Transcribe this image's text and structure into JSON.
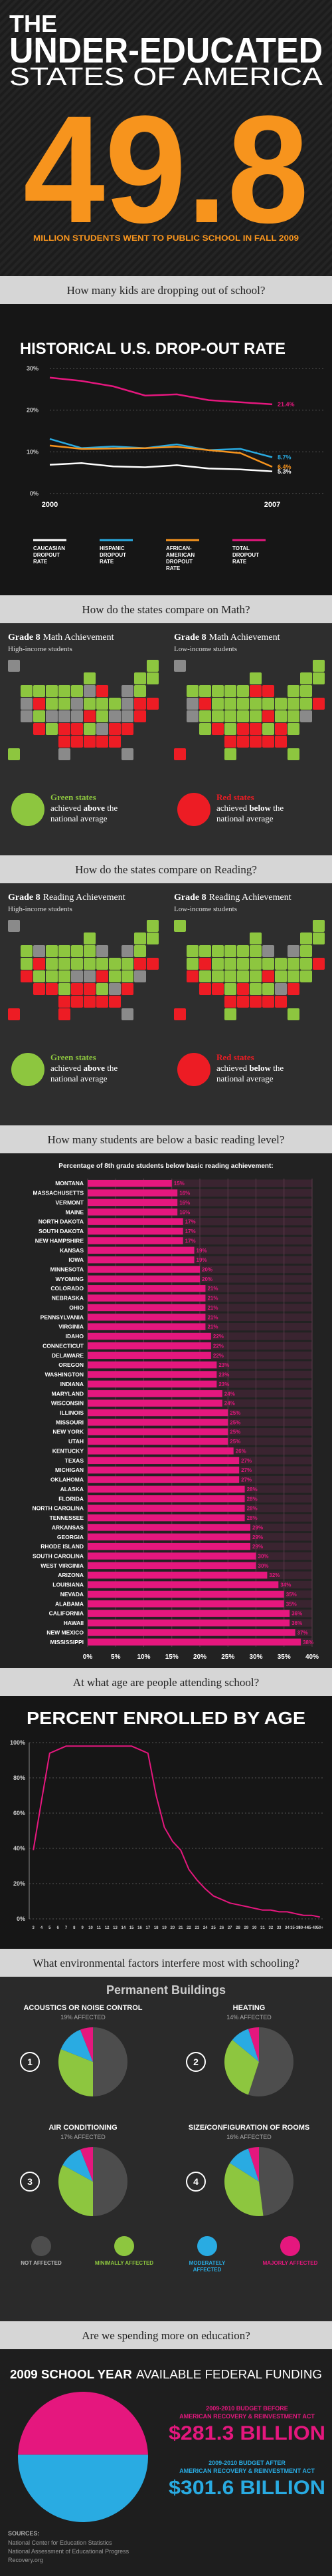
{
  "header": {
    "kicker": "THE",
    "title_1": "UNDER-EDUCATED",
    "title_2": "STATES OF AMERICA",
    "big_number": 49.8,
    "big_caption": "MILLION STUDENTS WENT TO PUBLIC SCHOOL IN FALL 2009"
  },
  "questions": [
    "How many kids are dropping out of school?",
    "How do the states compare on Math?",
    "How do the states compare on Reading?",
    "How many students are below a basic reading level?",
    "At what age are people attending school?",
    "What environmental factors interfere most with schooling?",
    "Are we spending more on education?"
  ],
  "maps": [
    {
      "blocks": [
        {
          "title_a": "Grade 8",
          "title_b": "Math Achievement",
          "subtitle": "High-income students"
        },
        {
          "title_a": "Grade 8",
          "title_b": "Math Achievement",
          "subtitle": "Low-income students"
        }
      ]
    },
    {
      "blocks": [
        {
          "title_a": "Grade 8",
          "title_b": "Reading Achievement",
          "subtitle": "High-income students"
        },
        {
          "title_a": "Grade 8",
          "title_b": "Reading Achievement",
          "subtitle": "Low-income students"
        }
      ]
    }
  ],
  "map_legend": [
    {
      "title": "Green states",
      "pre": "achieved",
      "key": "above",
      "post": "the",
      "line_3": "national average",
      "color": "#8dc63f"
    },
    {
      "title": "Red states",
      "pre": "achieved",
      "key": "below",
      "post": "the",
      "line_3": "national average",
      "color": "#ed1c24"
    }
  ],
  "chart_data": [
    {
      "type": "line",
      "title": "HISTORICAL U.S. DROP-OUT RATE",
      "x": [
        2000,
        2001,
        2002,
        2003,
        2004,
        2005,
        2006,
        2007
      ],
      "xlim": [
        2000,
        2007
      ],
      "xticks": [
        2000,
        2007
      ],
      "ylim": [
        0,
        30
      ],
      "yticks": [
        {
          "value": 0,
          "label": "0%"
        },
        {
          "value": 10,
          "label": "10%"
        },
        {
          "value": 20,
          "label": "20%"
        },
        {
          "value": 30,
          "label": "30%"
        }
      ],
      "grid": true,
      "series": [
        {
          "name": "CAUCASIAN DROPOUT RATE",
          "color": "#ffffff",
          "values": [
            6.9,
            7.3,
            6.5,
            6.3,
            6.8,
            6.0,
            5.8,
            5.3
          ],
          "value_labels": [
            null,
            null,
            null,
            null,
            null,
            null,
            null,
            "5.3%"
          ]
        },
        {
          "name": "HISPANIC DROPOUT RATE",
          "color": "#29abe2",
          "values": [
            13.1,
            10.9,
            11.3,
            10.9,
            11.8,
            10.4,
            10.7,
            8.7
          ],
          "value_labels": [
            null,
            null,
            null,
            null,
            null,
            null,
            null,
            "8.7%"
          ]
        },
        {
          "name": "AFRICAN-AMERICAN DROPOUT RATE",
          "color": "#f7941d",
          "values": [
            11.5,
            10.7,
            10.8,
            10.9,
            11.2,
            10.4,
            9.7,
            6.4
          ],
          "value_labels": [
            null,
            null,
            null,
            null,
            null,
            null,
            null,
            "6.4%"
          ]
        },
        {
          "name": "TOTAL DROPOUT RATE",
          "color": "#e5177e",
          "values": [
            27.8,
            27.0,
            25.7,
            23.5,
            23.8,
            22.4,
            21.9,
            21.4
          ],
          "value_labels": [
            null,
            null,
            null,
            null,
            null,
            null,
            null,
            "21.4%"
          ]
        }
      ]
    },
    {
      "type": "bar",
      "subtitle": "Percentage of 8th grade students below basic reading achievement:",
      "categories": [
        "MONTANA",
        "MASSACHUSETTS",
        "VERMONT",
        "MAINE",
        "NORTH DAKOTA",
        "SOUTH DAKOTA",
        "NEW HAMPSHIRE",
        "KANSAS",
        "IOWA",
        "MINNESOTA",
        "WYOMING",
        "COLORADO",
        "NEBRASKA",
        "OHIO",
        "PENNSYLVANIA",
        "VIRGINIA",
        "IDAHO",
        "CONNECTICUT",
        "DELAWARE",
        "OREGON",
        "WASHINGTON",
        "INDIANA",
        "MARYLAND",
        "WISCONSIN",
        "ILLINOIS",
        "MISSOURI",
        "NEW YORK",
        "UTAH",
        "KENTUCKY",
        "TEXAS",
        "MICHIGAN",
        "OKLAHOMA",
        "ALASKA",
        "FLORIDA",
        "NORTH CAROLINA",
        "TENNESSEE",
        "ARKANSAS",
        "GEORGIA",
        "RHODE ISLAND",
        "SOUTH CAROLINA",
        "WEST VIRGINIA",
        "ARIZONA",
        "LOUISIANA",
        "NEVADA",
        "ALABAMA",
        "CALIFORNIA",
        "HAWAII",
        "NEW MEXICO",
        "MISSISSIPPI"
      ],
      "values": [
        15,
        16,
        16,
        16,
        17,
        17,
        17,
        19,
        19,
        20,
        20,
        21,
        21,
        21,
        21,
        21,
        22,
        22,
        22,
        23,
        23,
        23,
        24,
        24,
        25,
        25,
        25,
        25,
        26,
        27,
        27,
        27,
        28,
        28,
        28,
        28,
        29,
        29,
        29,
        30,
        30,
        32,
        34,
        35,
        35,
        36,
        36,
        37,
        38
      ],
      "value_labels": [
        "15%",
        "16%",
        "16%",
        "16%",
        "17%",
        "17%",
        "17%",
        "19%",
        "19%",
        "20%",
        "20%",
        "21%",
        "21%",
        "21%",
        "21%",
        "21%",
        "22%",
        "22%",
        "22%",
        "23%",
        "23%",
        "23%",
        "24%",
        "24%",
        "25%",
        "25%",
        "25%",
        "25%",
        "26%",
        "27%",
        "27%",
        "27%",
        "28%",
        "28%",
        "28%",
        "28%",
        "29%",
        "29%",
        "29%",
        "30%",
        "30%",
        "32%",
        "34%",
        "35%",
        "35%",
        "36%",
        "36%",
        "37%",
        "38%"
      ],
      "color": "#e5177e",
      "xlim": [
        0,
        40
      ],
      "xticks": [
        {
          "value": 0,
          "label": "0%"
        },
        {
          "value": 5,
          "label": "5%"
        },
        {
          "value": 10,
          "label": "10%"
        },
        {
          "value": 15,
          "label": "15%"
        },
        {
          "value": 20,
          "label": "20%"
        },
        {
          "value": 25,
          "label": "25%"
        },
        {
          "value": 30,
          "label": "30%"
        },
        {
          "value": 35,
          "label": "35%"
        },
        {
          "value": 40,
          "label": "40%"
        }
      ],
      "grid": true
    },
    {
      "type": "line",
      "title": "PERCENT ENROLLED BY AGE",
      "categories": [
        "3",
        "4",
        "5",
        "6",
        "7",
        "8",
        "9",
        "10",
        "11",
        "12",
        "13",
        "14",
        "15",
        "16",
        "17",
        "18",
        "19",
        "20",
        "21",
        "22",
        "23",
        "24",
        "25",
        "26",
        "27",
        "28",
        "29",
        "30",
        "31",
        "32",
        "33",
        "34",
        "35-39",
        "40-44",
        "45-49",
        "50+"
      ],
      "values": [
        39,
        67,
        94,
        96,
        98,
        98,
        98,
        98,
        98,
        98,
        98,
        98,
        98,
        96,
        94,
        70,
        52,
        44,
        39,
        28,
        22,
        17,
        13,
        11,
        9,
        8,
        7,
        6,
        5,
        5,
        4,
        4,
        3,
        2,
        2,
        1
      ],
      "color": "#e5177e",
      "ylim": [
        0,
        100
      ],
      "yticks": [
        {
          "value": 0,
          "label": "0%"
        },
        {
          "value": 20,
          "label": "20%"
        },
        {
          "value": 40,
          "label": "40%"
        },
        {
          "value": 60,
          "label": "60%"
        },
        {
          "value": 80,
          "label": "80%"
        },
        {
          "value": 100,
          "label": "100%"
        }
      ],
      "grid": true
    },
    {
      "type": "pie",
      "title": "Permanent Buildings",
      "categories": [
        "NOT AFFECTED",
        "MINIMALLY AFFECTED",
        "MODERATELY AFFECTED",
        "MAJORLY AFFECTED"
      ],
      "colors": [
        "#4d4d4d",
        "#8dc63f",
        "#29abe2",
        "#e5177e"
      ],
      "pies": [
        {
          "badge": 1,
          "title": "ACOUSTICS OR NOISE CONTROL",
          "subtitle": "19% AFFECTED",
          "values": [
            50,
            31,
            13,
            6
          ]
        },
        {
          "badge": 2,
          "title": "HEATING",
          "subtitle": "14% AFFECTED",
          "values": [
            55,
            31,
            9,
            5
          ]
        },
        {
          "badge": 3,
          "title": "AIR CONDITIONING",
          "subtitle": "17% AFFECTED",
          "values": [
            50,
            33,
            11,
            6
          ]
        },
        {
          "badge": 4,
          "title": "SIZE/CONFIGURATION OF ROOMS",
          "subtitle": "16% AFFECTED",
          "values": [
            48,
            36,
            11,
            5
          ]
        }
      ]
    },
    {
      "type": "split",
      "title_a": "2009 SCHOOL YEAR",
      "title_b": "AVAILABLE FEDERAL FUNDING",
      "series": [
        {
          "label_1": "2009-2010 BUDGET BEFORE",
          "label_2": "AMERICAN RECOVERY & REINVESTMENT ACT",
          "value": 281.3,
          "value_label": "$281.3 BILLION",
          "color": "#e5177e"
        },
        {
          "label_1": "2009-2010 BUDGET AFTER",
          "label_2": "AMERICAN RECOVERY & REINVESTMENT ACT",
          "value": 301.6,
          "value_label": "$301.6 BILLION",
          "color": "#29abe2"
        }
      ]
    }
  ],
  "sources": {
    "title": "SOURCES:",
    "items": [
      "National Center for Education Statistics",
      "National Assessment of Educational Progress",
      "Recovery.org"
    ]
  }
}
